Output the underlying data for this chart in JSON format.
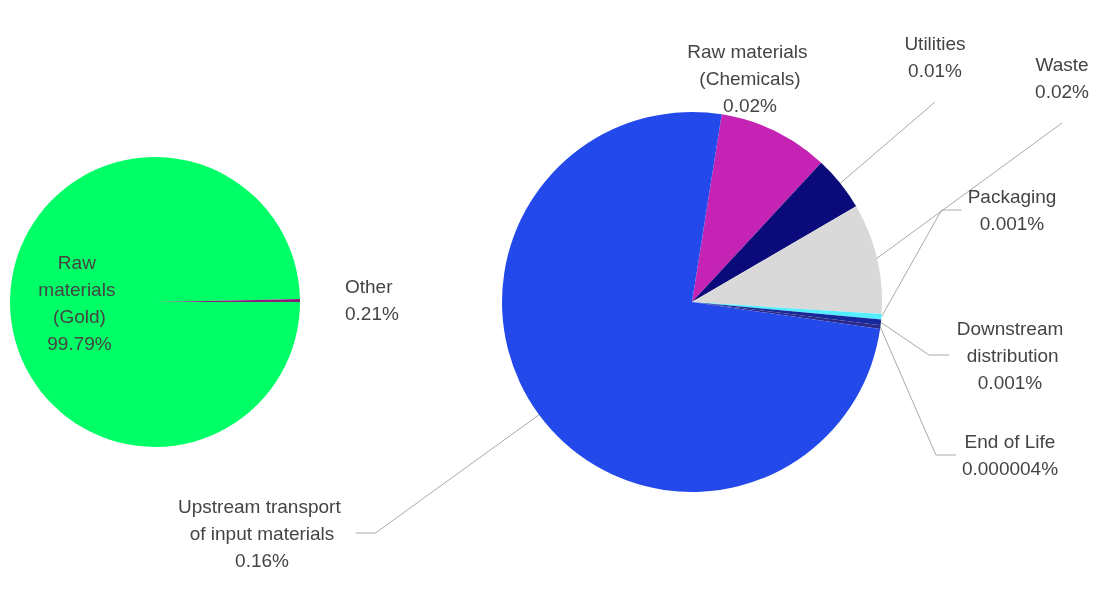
{
  "chart_data": [
    {
      "type": "pie",
      "categories": [
        "Raw materials (Gold)",
        "Other"
      ],
      "values": [
        99.79,
        0.21
      ],
      "colors": [
        "#00ff66",
        "#8a1e7a"
      ],
      "value_labels": [
        "99.79%",
        "0.21%"
      ]
    },
    {
      "type": "pie",
      "categories": [
        "Raw materials (Chemicals)",
        "Utilities",
        "Waste",
        "Packaging",
        "Downstream distribution",
        "End of Life",
        "Upstream transport of input materials"
      ],
      "values": [
        0.02,
        0.01,
        0.02,
        0.001,
        0.001,
        4e-06,
        0.16
      ],
      "colors": [
        "#c423b4",
        "#0a0a7a",
        "#d9d9d9",
        "#55eeff",
        "#16289a",
        "#2a2a8a",
        "#2349ea"
      ],
      "value_labels": [
        "0.02%",
        "0.01%",
        "0.02%",
        "0.001%",
        "0.001%",
        "0.000004%",
        "0.16%"
      ]
    }
  ]
}
